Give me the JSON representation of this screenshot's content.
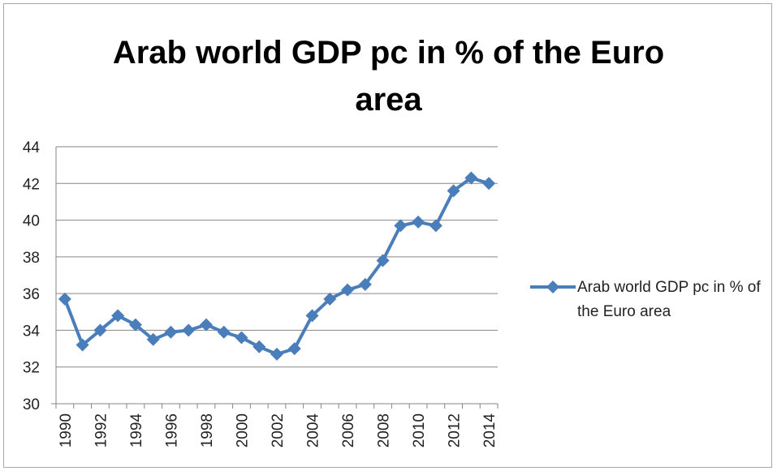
{
  "chart_data": {
    "type": "line",
    "title_lines": [
      "Arab world GDP pc in % of the Euro",
      "area"
    ],
    "xlabel": "",
    "ylabel": "",
    "ylim": [
      30,
      44
    ],
    "yticks": [
      30,
      32,
      34,
      36,
      38,
      40,
      42,
      44
    ],
    "categories": [
      "1990",
      "1991",
      "1992",
      "1993",
      "1994",
      "1995",
      "1996",
      "1997",
      "1998",
      "1999",
      "2000",
      "2001",
      "2002",
      "2003",
      "2004",
      "2005",
      "2006",
      "2007",
      "2008",
      "2009",
      "2010",
      "2011",
      "2012",
      "2013",
      "2014"
    ],
    "x_tick_labels": [
      "1990",
      "1992",
      "1994",
      "1996",
      "1998",
      "2000",
      "2002",
      "2004",
      "2006",
      "2008",
      "2010",
      "2012",
      "2014"
    ],
    "series": [
      {
        "name": "Arab world GDP pc in % of the Euro area",
        "color": "#4a7ebb",
        "marker": "diamond",
        "values": [
          35.7,
          33.2,
          34.0,
          34.8,
          34.3,
          33.5,
          33.9,
          34.0,
          34.3,
          33.9,
          33.6,
          33.1,
          32.7,
          33.0,
          34.8,
          35.7,
          36.2,
          36.5,
          37.8,
          39.7,
          39.9,
          39.7,
          41.6,
          42.3,
          42.0
        ]
      }
    ],
    "grid": true,
    "legend_position": "right"
  }
}
